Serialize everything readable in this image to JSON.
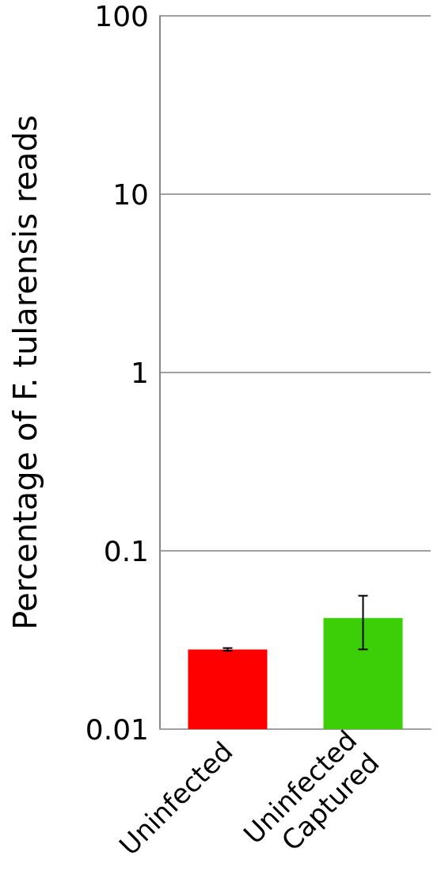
{
  "chart_data": {
    "type": "bar",
    "ylabel": "Percentage of F. tularensis reads",
    "categories": [
      "Uninfected",
      "Uninfected\nCaptured"
    ],
    "values": [
      0.028,
      0.042
    ],
    "colors": [
      "#ff0000",
      "#3ccf08"
    ],
    "errors": [
      0.0005,
      [
        0.028,
        0.056
      ]
    ],
    "log": true,
    "ylim": [
      0.01,
      100
    ],
    "yticks": [
      0.01,
      0.1,
      1,
      10,
      100
    ],
    "grid": "y"
  }
}
